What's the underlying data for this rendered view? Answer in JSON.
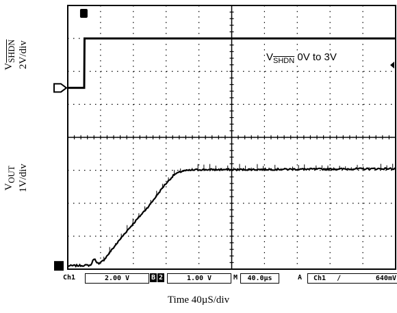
{
  "labels": {
    "y_top": "V",
    "y_top_sub": "SHDN",
    "y_top_unit": "2V/div",
    "y_bottom": "V",
    "y_bottom_sub": "OUT",
    "y_bottom_unit": "1V/div",
    "x_label": "Time 40µS/div",
    "annotation_main": "V",
    "annotation_sub": "SHDN",
    "annotation_rest": " 0V to 3V"
  },
  "scope_status": {
    "ch1": "Ch1",
    "ch1_scale": "2.00 V",
    "ch2_marker": "B",
    "ch2_num": "2",
    "ch2_scale": "1.00 V",
    "m_marker": "M",
    "timebase": "40.0µs",
    "trig_marker": "A",
    "trig_ch": "Ch1",
    "trig_slope": "∕",
    "trig_level": "640mV"
  },
  "chart_data": {
    "type": "line",
    "divisions": {
      "x": 10,
      "y": 8
    },
    "x_unit": "µs",
    "x_per_div": 40,
    "x_range": [
      0,
      400
    ],
    "series": [
      {
        "name": "V SHDN",
        "volts_per_div": 2,
        "x": [
          0,
          20,
          20.5,
          400
        ],
        "y": [
          0,
          0,
          3,
          3
        ]
      },
      {
        "name": "V OUT",
        "volts_per_div": 1,
        "x": [
          0,
          28,
          32,
          38,
          44,
          70,
          100,
          118,
          130,
          140,
          160,
          200,
          260,
          340,
          400
        ],
        "y": [
          0,
          0.02,
          0.22,
          0.05,
          0.18,
          1.0,
          1.85,
          2.45,
          2.77,
          2.88,
          2.92,
          2.92,
          2.93,
          2.94,
          2.95
        ]
      }
    ],
    "colors": {
      "trace": "#000000",
      "grid": "#000000",
      "background": "#ffffff"
    }
  }
}
